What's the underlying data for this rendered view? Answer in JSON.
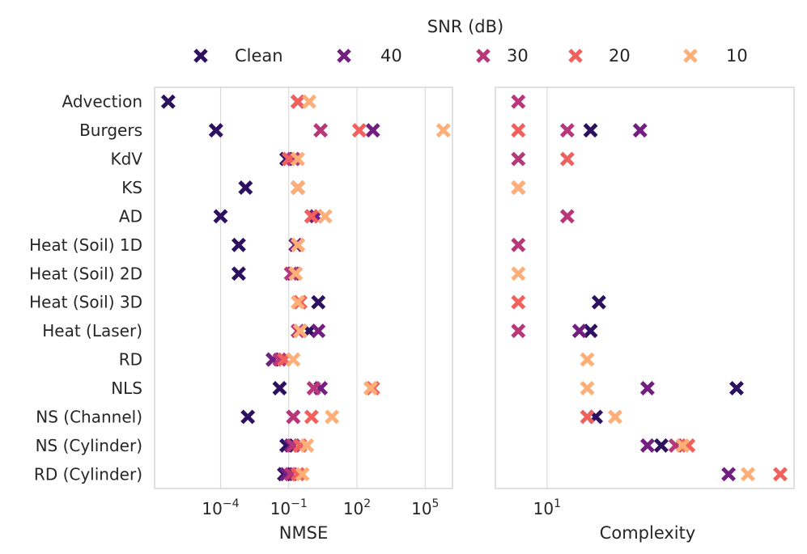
{
  "chart_data": {
    "type": "scatter",
    "legend": {
      "title": "SNR (dB)",
      "placement": "top",
      "entries": [
        {
          "label": "Clean",
          "color": "#2d1160"
        },
        {
          "label": "40",
          "color": "#721f81"
        },
        {
          "label": "30",
          "color": "#b73779"
        },
        {
          "label": "20",
          "color": "#f1605d"
        },
        {
          "label": "10",
          "color": "#feaf77"
        }
      ]
    },
    "categories": [
      "Advection",
      "Burgers",
      "KdV",
      "KS",
      "AD",
      "Heat (Soil) 1D",
      "Heat (Soil) 2D",
      "Heat (Soil) 3D",
      "Heat (Laser)",
      "RD",
      "NLS",
      "NS (Channel)",
      "NS (Cylinder)",
      "RD (Cylinder)"
    ],
    "panels": [
      {
        "name": "nmse",
        "xlabel": "NMSE",
        "xscale": "log",
        "xlim_log10": [
          -6.9,
          6.2
        ],
        "ticks": [
          {
            "base": "10",
            "exp": "−4",
            "value_log10": -4
          },
          {
            "base": "10",
            "exp": "−1",
            "value_log10": -1
          },
          {
            "base": "10",
            "exp": "2",
            "value_log10": 2
          },
          {
            "base": "10",
            "exp": "5",
            "value_log10": 5
          }
        ],
        "series": [
          {
            "name": "Clean",
            "log10_values": [
              -6.3,
              -4.2,
              -1.1,
              -2.9,
              -4.0,
              -3.2,
              -3.2,
              0.3,
              -0.1,
              -1.7,
              -1.4,
              -2.8,
              -1.1,
              -1.2
            ]
          },
          {
            "name": "40",
            "log10_values": [
              -0.6,
              2.7,
              -0.8,
              -0.6,
              0.2,
              -0.7,
              -0.8,
              -0.5,
              0.3,
              -1.7,
              0.4,
              -0.8,
              -0.9,
              -1.1
            ]
          },
          {
            "name": "30",
            "log10_values": [
              -0.6,
              0.4,
              -0.8,
              -0.6,
              0.0,
              -0.6,
              -0.9,
              -0.5,
              -0.6,
              -1.4,
              0.1,
              -0.8,
              -0.8,
              -0.9
            ]
          },
          {
            "name": "20",
            "log10_values": [
              -0.6,
              2.1,
              -1.0,
              -0.6,
              0.0,
              -0.6,
              -0.7,
              -0.5,
              -0.5,
              -1.2,
              2.7,
              0.0,
              -0.5,
              -0.6
            ]
          },
          {
            "name": "10",
            "log10_values": [
              -0.1,
              5.8,
              -0.6,
              -0.6,
              0.6,
              -0.6,
              -0.7,
              -0.6,
              -0.5,
              -0.8,
              2.6,
              0.9,
              -0.2,
              -0.4
            ]
          }
        ]
      },
      {
        "name": "complexity",
        "xlabel": "Complexity",
        "xscale": "log",
        "xlim": [
          7,
          55
        ],
        "ticks": [
          {
            "base": "10",
            "exp": "1",
            "value": 10
          }
        ],
        "series": [
          {
            "name": "Clean",
            "values": [
              null,
              13.5,
              null,
              null,
              null,
              null,
              null,
              14.3,
              13.5,
              null,
              37,
              14,
              22,
              null
            ]
          },
          {
            "name": "40",
            "values": [
              null,
              19,
              null,
              null,
              null,
              null,
              null,
              null,
              12.5,
              null,
              20,
              null,
              20,
              35
            ]
          },
          {
            "name": "30",
            "values": [
              8.2,
              11.5,
              8.2,
              8.2,
              11.5,
              8.2,
              null,
              null,
              8.2,
              null,
              null,
              null,
              24.3,
              null
            ]
          },
          {
            "name": "20",
            "values": [
              null,
              8.2,
              11.5,
              null,
              null,
              null,
              null,
              8.2,
              null,
              null,
              null,
              13.2,
              26.5,
              50
            ]
          },
          {
            "name": "10",
            "values": [
              null,
              null,
              null,
              8.2,
              null,
              null,
              8.2,
              null,
              null,
              13.2,
              13.2,
              16,
              25.5,
              40
            ]
          }
        ]
      }
    ]
  }
}
